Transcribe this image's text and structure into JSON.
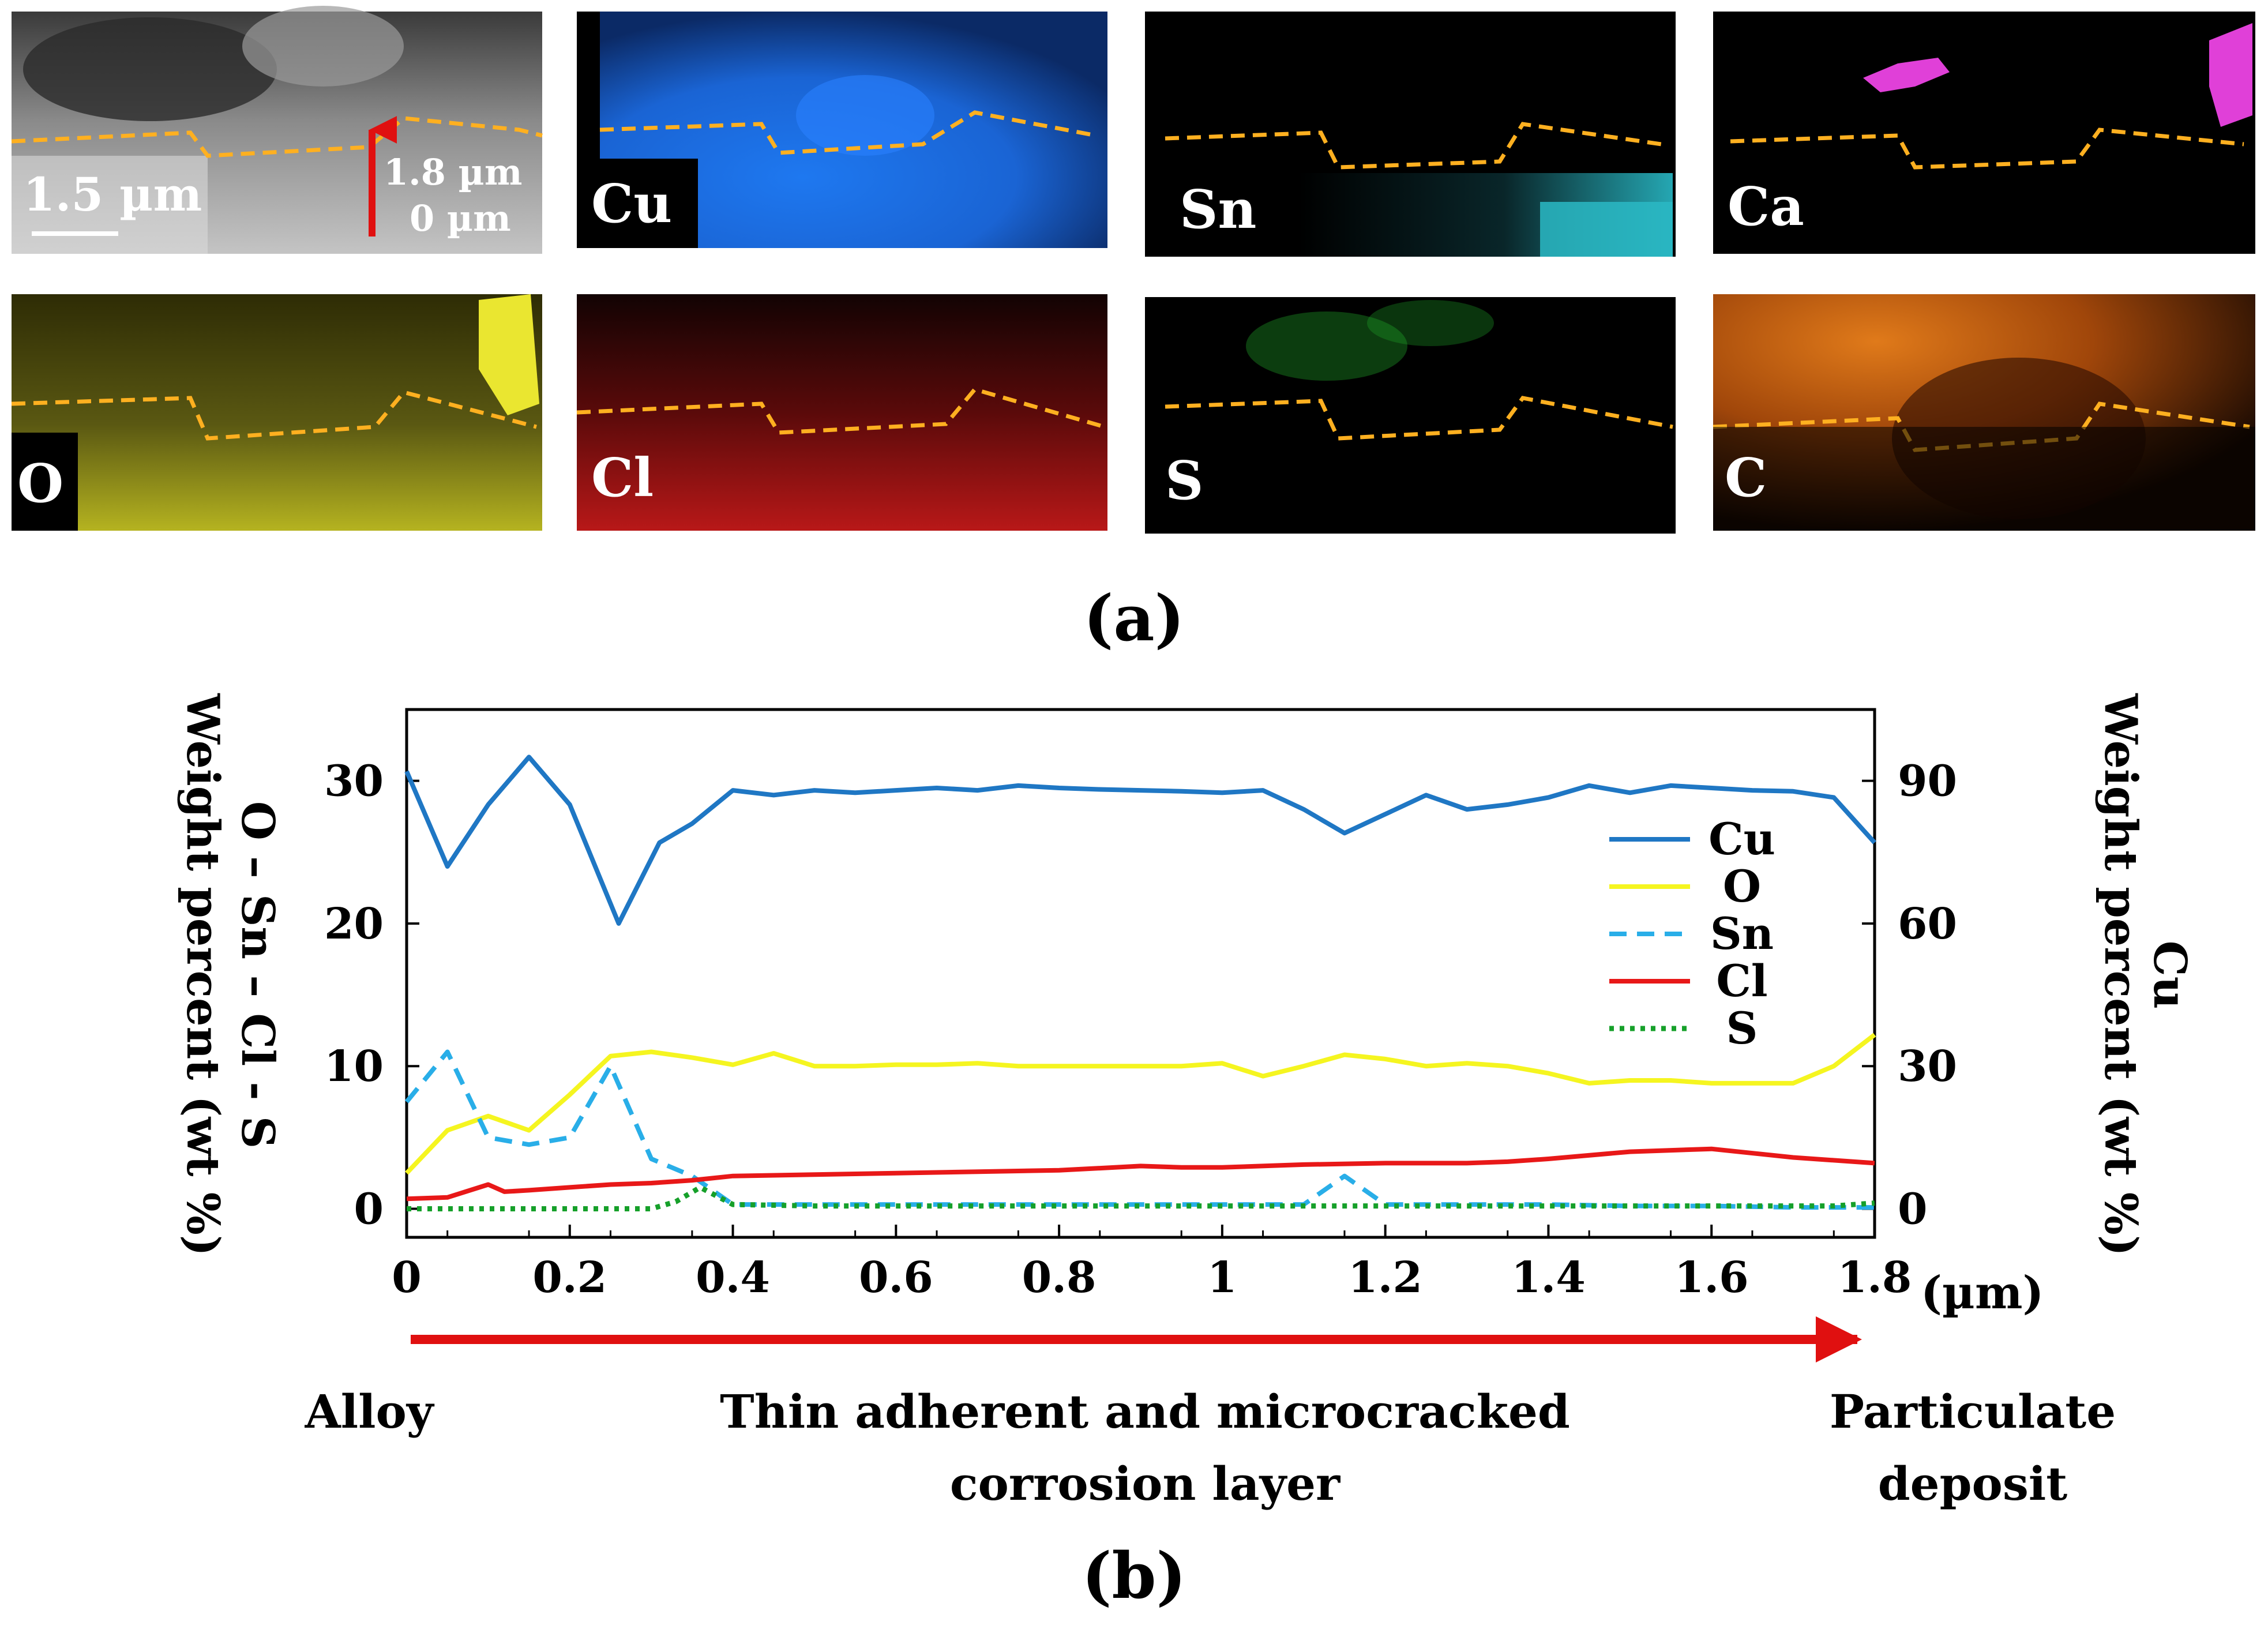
{
  "panel_a": {
    "label": "(a)",
    "scale_bar_text": "1.5 µm",
    "depth_top": "1.8 µm",
    "depth_bottom": "0 µm",
    "maps": [
      {
        "element": "Cu",
        "color": "#1a6fe0"
      },
      {
        "element": "Sn",
        "color": "#24b8c8"
      },
      {
        "element": "Ca",
        "color": "#e040d8"
      },
      {
        "element": "O",
        "color": "#c8c420"
      },
      {
        "element": "Cl",
        "color": "#c81818"
      },
      {
        "element": "S",
        "color": "#22b02a"
      },
      {
        "element": "C",
        "color": "#d86a10"
      }
    ],
    "interface_line_color": "#ffb020"
  },
  "panel_b": {
    "label": "(b)",
    "annotations": {
      "left": "Alloy",
      "middle_line1": "Thin adherent and microcracked",
      "middle_line2": "corrosion layer",
      "right_line1": "Particulate",
      "right_line2": "deposit"
    },
    "arrow_color": "#e01010"
  },
  "chart_data": {
    "type": "line",
    "title": "",
    "xlabel": "(µm)",
    "ylabel_left_line1": "O – Sn – Cl - S",
    "ylabel_left_line2": "Weight percent (wt %)",
    "ylabel_right_line1": "Cu",
    "ylabel_right_line2": "Weight percent (wt %)",
    "xlim": [
      0,
      1.8
    ],
    "ylim_left": [
      -2,
      35
    ],
    "ylim_right": [
      -6,
      105
    ],
    "x_ticks": [
      "0",
      "0.2",
      "0.4",
      "0.6",
      "0.8",
      "1",
      "1.2",
      "1.4",
      "1.6",
      "1.8"
    ],
    "y_ticks_left": [
      "0",
      "10",
      "20",
      "30"
    ],
    "y_ticks_right": [
      "0",
      "30",
      "60",
      "90"
    ],
    "legend_position": "right",
    "series": [
      {
        "name": "Cu",
        "axis": "right",
        "color": "#1f77c4",
        "dash": "solid",
        "x": [
          0,
          0.05,
          0.1,
          0.15,
          0.2,
          0.26,
          0.31,
          0.35,
          0.4,
          0.45,
          0.5,
          0.55,
          0.6,
          0.65,
          0.7,
          0.75,
          0.8,
          0.85,
          0.9,
          0.95,
          1.0,
          1.05,
          1.1,
          1.15,
          1.2,
          1.25,
          1.3,
          1.35,
          1.4,
          1.45,
          1.5,
          1.55,
          1.6,
          1.65,
          1.7,
          1.75,
          1.8
        ],
        "y": [
          92,
          72,
          85,
          95,
          85,
          60,
          77,
          81,
          88,
          87,
          88,
          87.5,
          88,
          88.5,
          88,
          89,
          88.5,
          88.2,
          88,
          87.8,
          87.5,
          88,
          84,
          79,
          83,
          87,
          84,
          85,
          86.5,
          89,
          87.5,
          89,
          88.5,
          88,
          87.8,
          86.5,
          77
        ]
      },
      {
        "name": "O",
        "axis": "left",
        "color": "#f5f520",
        "dash": "solid",
        "x": [
          0,
          0.05,
          0.1,
          0.15,
          0.2,
          0.25,
          0.3,
          0.35,
          0.4,
          0.45,
          0.5,
          0.55,
          0.6,
          0.65,
          0.7,
          0.75,
          0.8,
          0.85,
          0.9,
          0.95,
          1.0,
          1.05,
          1.1,
          1.15,
          1.2,
          1.25,
          1.3,
          1.35,
          1.4,
          1.45,
          1.5,
          1.55,
          1.6,
          1.65,
          1.7,
          1.75,
          1.8
        ],
        "y": [
          2.5,
          5.5,
          6.5,
          5.5,
          8,
          10.7,
          11,
          10.6,
          10.1,
          10.9,
          10,
          10,
          10.1,
          10.1,
          10.2,
          10,
          10,
          10,
          10,
          10,
          10.2,
          9.3,
          10,
          10.8,
          10.5,
          10,
          10.2,
          10,
          9.5,
          8.8,
          9,
          9,
          8.8,
          8.8,
          8.8,
          10,
          12.2
        ]
      },
      {
        "name": "Sn",
        "axis": "left",
        "color": "#29aee8",
        "dash": "dash",
        "x": [
          0,
          0.05,
          0.1,
          0.15,
          0.2,
          0.25,
          0.3,
          0.35,
          0.4,
          0.5,
          0.6,
          0.7,
          0.8,
          0.9,
          1.0,
          1.1,
          1.15,
          1.2,
          1.3,
          1.4,
          1.5,
          1.6,
          1.7,
          1.8
        ],
        "y": [
          7.5,
          11,
          5,
          4.5,
          5,
          10,
          3.5,
          2.3,
          0.3,
          0.3,
          0.3,
          0.3,
          0.3,
          0.3,
          0.3,
          0.3,
          2.3,
          0.3,
          0.3,
          0.3,
          0.2,
          0.2,
          0.1,
          0.1
        ]
      },
      {
        "name": "Cl",
        "axis": "left",
        "color": "#e81818",
        "dash": "solid",
        "x": [
          0,
          0.05,
          0.1,
          0.12,
          0.15,
          0.2,
          0.25,
          0.3,
          0.35,
          0.4,
          0.5,
          0.6,
          0.7,
          0.8,
          0.9,
          0.95,
          1.0,
          1.1,
          1.2,
          1.3,
          1.35,
          1.4,
          1.5,
          1.6,
          1.7,
          1.8
        ],
        "y": [
          0.7,
          0.8,
          1.7,
          1.2,
          1.3,
          1.5,
          1.7,
          1.8,
          2,
          2.3,
          2.4,
          2.5,
          2.6,
          2.7,
          3,
          2.9,
          2.9,
          3.1,
          3.2,
          3.2,
          3.3,
          3.5,
          4,
          4.2,
          3.6,
          3.2
        ]
      },
      {
        "name": "S",
        "axis": "left",
        "color": "#16a02a",
        "dash": "dot",
        "x": [
          0,
          0.1,
          0.2,
          0.3,
          0.33,
          0.36,
          0.4,
          0.5,
          0.6,
          0.7,
          0.8,
          0.9,
          1.0,
          1.1,
          1.2,
          1.3,
          1.4,
          1.5,
          1.6,
          1.7,
          1.75,
          1.8
        ],
        "y": [
          0,
          0,
          0,
          0,
          0.5,
          1.5,
          0.3,
          0.2,
          0.2,
          0.2,
          0.2,
          0.2,
          0.2,
          0.2,
          0.2,
          0.2,
          0.2,
          0.2,
          0.2,
          0.2,
          0.2,
          0.4
        ]
      }
    ]
  }
}
